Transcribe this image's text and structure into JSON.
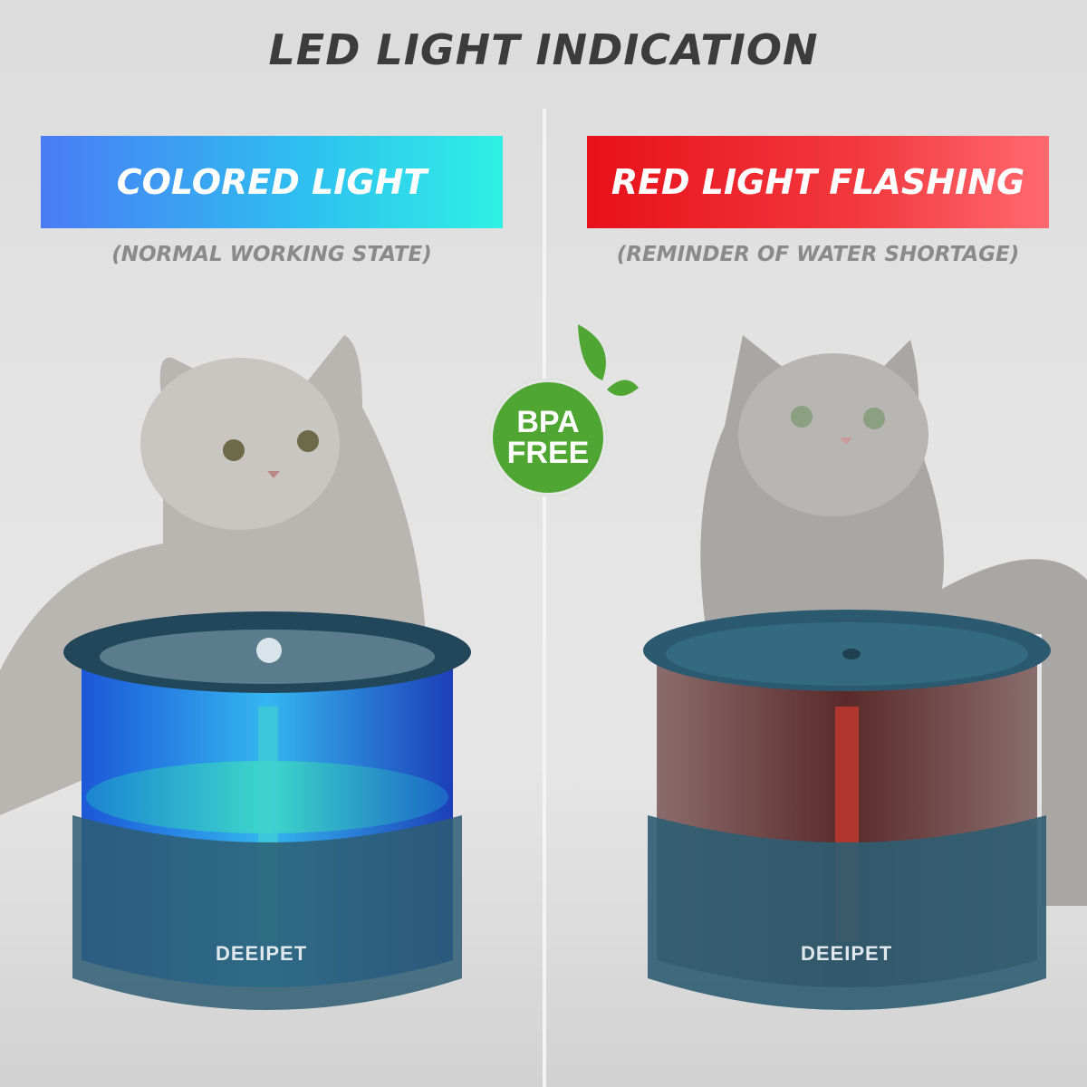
{
  "title": "LED LIGHT INDICATION",
  "left_panel": {
    "banner": "COLORED LIGHT",
    "caption": "(NORMAL WORKING STATE)",
    "brand": "DEEIPET",
    "banner_color": "#2fbdf0"
  },
  "right_panel": {
    "banner": "RED LIGHT FLASHING",
    "caption": "(REMINDER OF WATER SHORTAGE)",
    "brand": "DEEIPET",
    "banner_color": "#e8101a"
  },
  "badge": {
    "line1": "BPA",
    "line2": "FREE",
    "color": "#4fa632",
    "icon": "leaf-icon"
  }
}
